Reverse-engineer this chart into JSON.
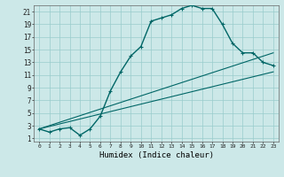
{
  "xlabel": "Humidex (Indice chaleur)",
  "ylabel": "",
  "xlim": [
    -0.5,
    23.5
  ],
  "ylim": [
    0.5,
    22
  ],
  "yticks": [
    1,
    3,
    5,
    7,
    9,
    11,
    13,
    15,
    17,
    19,
    21
  ],
  "xticks": [
    0,
    1,
    2,
    3,
    4,
    5,
    6,
    7,
    8,
    9,
    10,
    11,
    12,
    13,
    14,
    15,
    16,
    17,
    18,
    19,
    20,
    21,
    22,
    23
  ],
  "bg_color": "#cce8e8",
  "grid_color": "#99cccc",
  "line_color": "#006666",
  "line1_x": [
    0,
    1,
    2,
    3,
    4,
    5,
    6,
    7,
    8,
    9,
    10,
    11,
    12,
    13,
    14,
    15,
    16,
    17,
    18,
    19,
    20,
    21,
    22,
    23
  ],
  "line1_y": [
    2.5,
    2.0,
    2.5,
    2.7,
    1.5,
    2.5,
    4.5,
    8.5,
    11.5,
    14.0,
    15.5,
    19.5,
    20.0,
    20.5,
    21.5,
    22.0,
    21.5,
    21.5,
    19.0,
    16.0,
    14.5,
    14.5,
    13.0,
    12.5
  ],
  "line2_x": [
    0,
    23
  ],
  "line2_y": [
    2.5,
    14.5
  ],
  "line3_x": [
    0,
    23
  ],
  "line3_y": [
    2.5,
    11.5
  ]
}
